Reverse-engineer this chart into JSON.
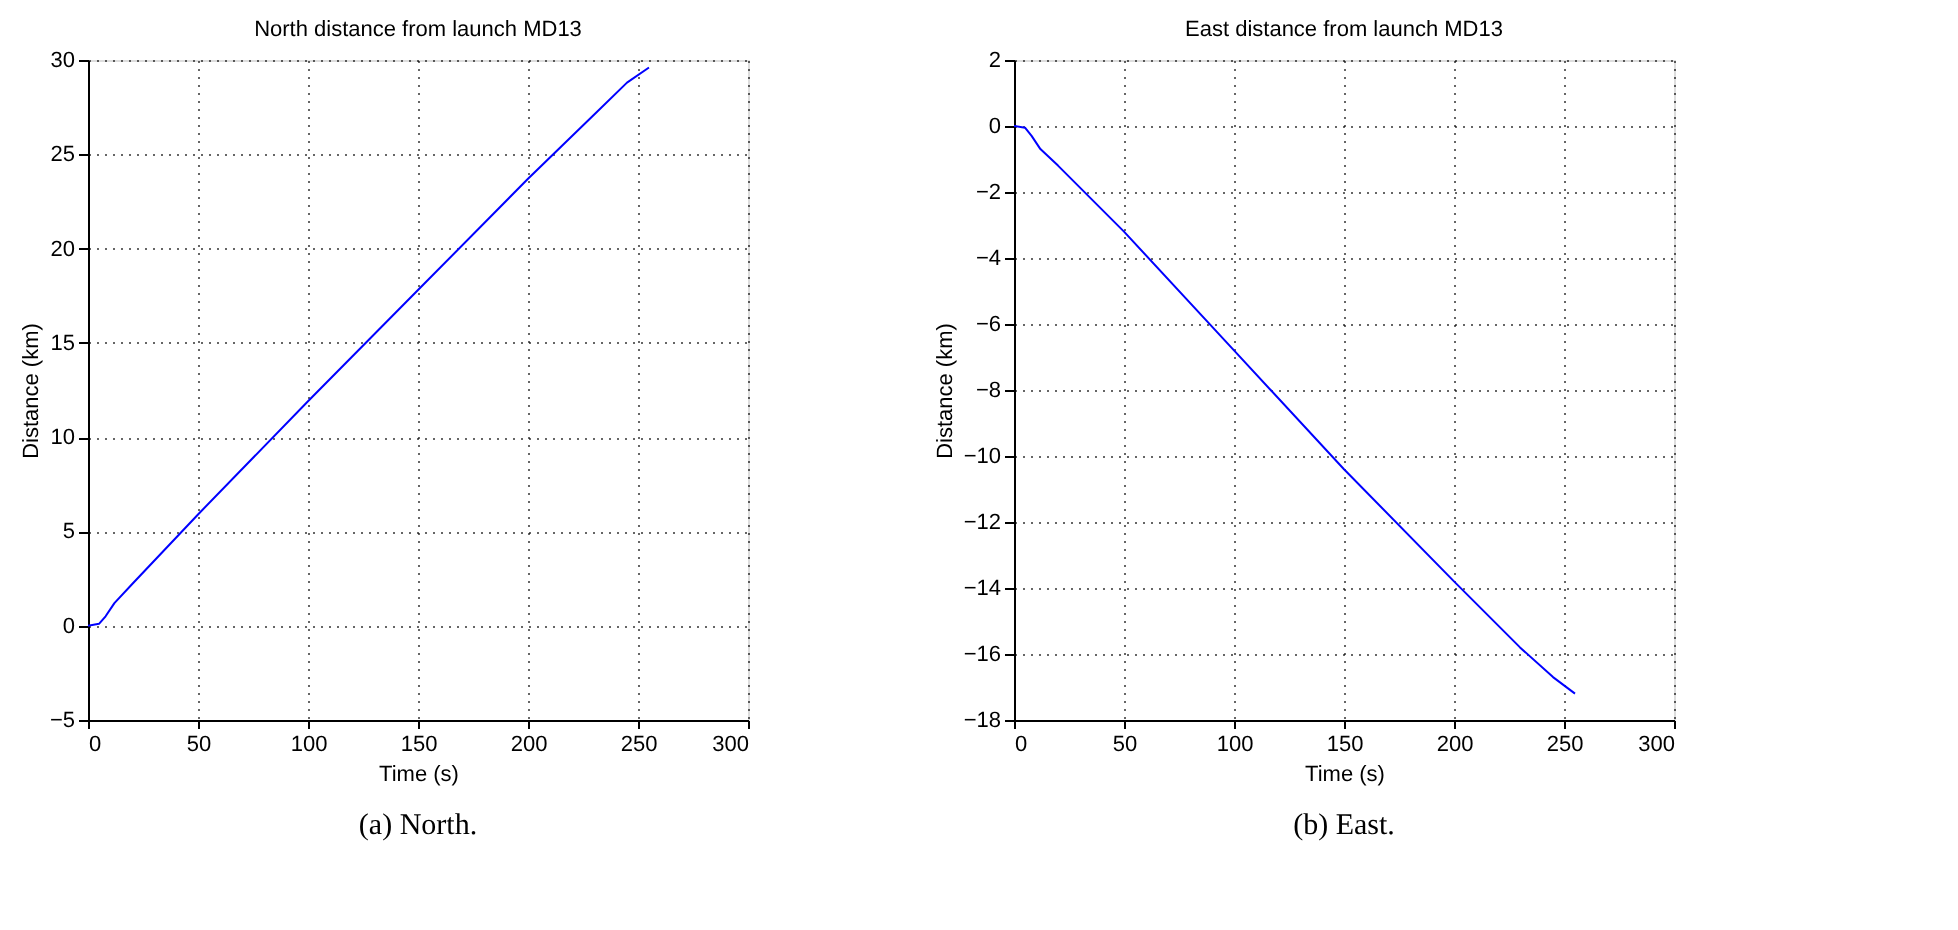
{
  "chart_data": [
    {
      "type": "line",
      "title": "North distance from launch MD13",
      "xlabel": "Time (s)",
      "ylabel": "Distance (km)",
      "annotations": [
        "(a) North."
      ],
      "x": [
        0,
        5,
        8,
        12,
        20,
        50,
        100,
        150,
        200,
        230,
        245,
        255
      ],
      "series": [
        {
          "color": "#0000ff",
          "values": [
            0,
            0.1,
            0.5,
            1.2,
            2.2,
            5.9,
            11.9,
            17.8,
            23.7,
            27.1,
            28.8,
            29.6
          ]
        }
      ],
      "xlim": [
        0,
        300
      ],
      "xticks": [
        0,
        50,
        100,
        150,
        200,
        250,
        300
      ],
      "ylim": [
        -5,
        30
      ],
      "yticks": [
        -5,
        0,
        5,
        10,
        15,
        20,
        25,
        30
      ],
      "grid": true
    },
    {
      "type": "line",
      "title": "East distance from launch MD13",
      "xlabel": "Time (s)",
      "ylabel": "Distance (km)",
      "annotations": [
        "(b) East."
      ],
      "x": [
        0,
        5,
        8,
        12,
        20,
        50,
        100,
        150,
        200,
        230,
        245,
        255
      ],
      "series": [
        {
          "color": "#0000ff",
          "values": [
            0,
            -0.05,
            -0.3,
            -0.7,
            -1.2,
            -3.2,
            -6.8,
            -10.4,
            -13.8,
            -15.8,
            -16.7,
            -17.2
          ]
        }
      ],
      "xlim": [
        0,
        300
      ],
      "xticks": [
        0,
        50,
        100,
        150,
        200,
        250,
        300
      ],
      "ylim": [
        -18,
        2
      ],
      "yticks": [
        -18,
        -16,
        -14,
        -12,
        -10,
        -8,
        -6,
        -4,
        -2,
        0,
        2
      ],
      "grid": true
    }
  ]
}
